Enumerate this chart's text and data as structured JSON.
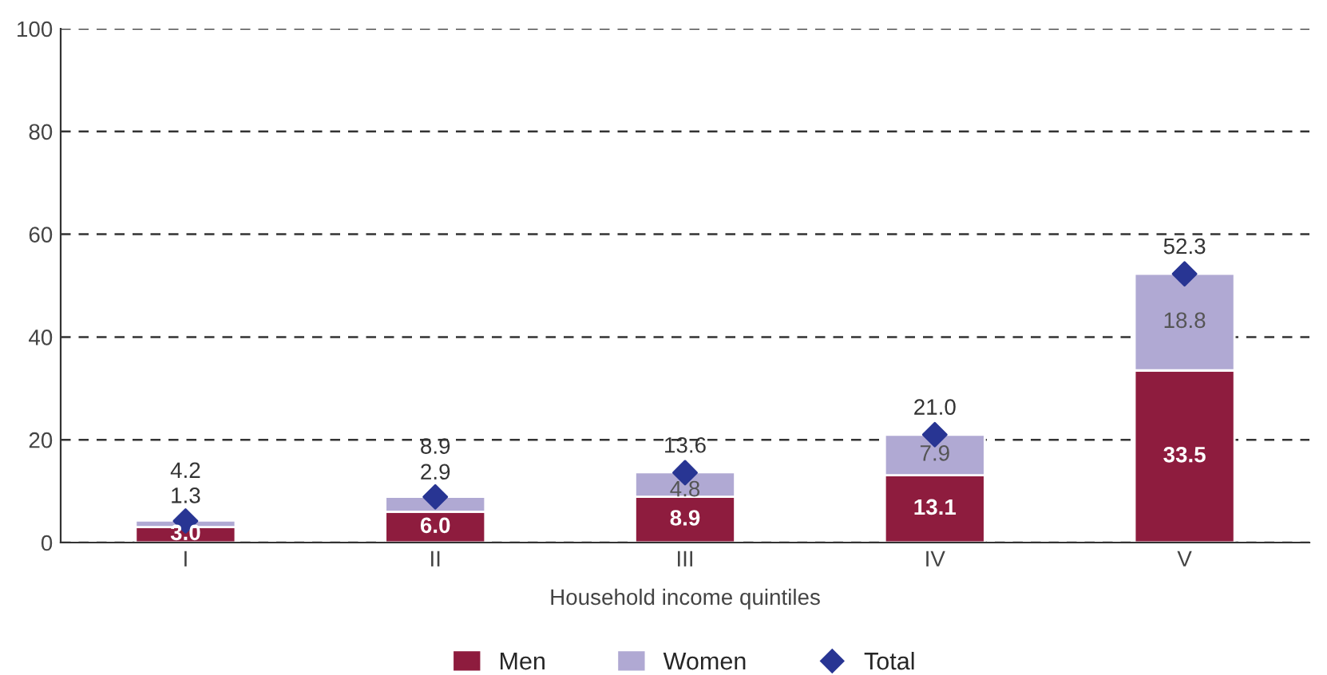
{
  "chart_data": {
    "type": "bar",
    "stacked": true,
    "xlabel": "Household income quintiles",
    "categories": [
      "I",
      "II",
      "III",
      "IV",
      "V"
    ],
    "series": [
      {
        "name": "Men",
        "color": "#8e1c3e",
        "values": [
          3.0,
          6.0,
          8.9,
          13.1,
          33.5
        ],
        "value_labels": [
          "3.0",
          "6.0",
          "8.9",
          "13.1",
          "33.5"
        ]
      },
      {
        "name": "Women",
        "color": "#b0a9d3",
        "values": [
          1.3,
          2.9,
          4.8,
          7.9,
          18.8
        ],
        "value_labels": [
          "1.3",
          "2.9",
          "4.8",
          "7.9",
          "18.8"
        ]
      },
      {
        "name": "Total",
        "type": "scatter",
        "color": "#283593",
        "marker": "diamond",
        "x": [
          "I",
          "II",
          "III",
          "IV",
          "V"
        ],
        "values": [
          4.2,
          8.9,
          13.6,
          21.0,
          52.3
        ],
        "value_labels": [
          "4.2",
          "8.9",
          "13.6",
          "21.0",
          "52.3"
        ]
      }
    ],
    "ylim": [
      0,
      100
    ],
    "yticks": [
      0,
      20,
      40,
      60,
      80,
      100
    ],
    "grid": "y",
    "legend": "bottom"
  }
}
